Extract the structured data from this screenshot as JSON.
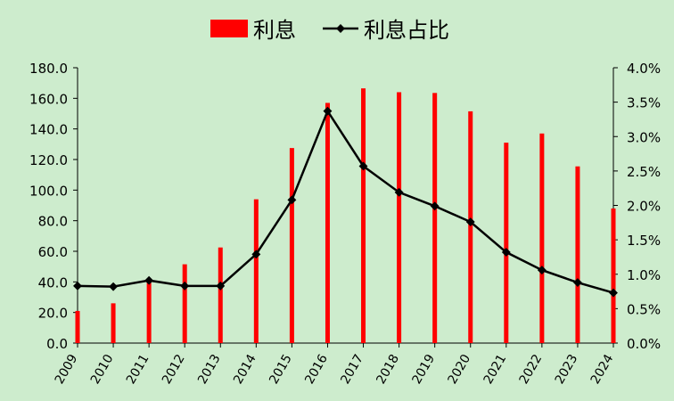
{
  "colors": {
    "background": "#cdeccd",
    "bar": "#ff0000",
    "line": "#000000"
  },
  "chart_data": {
    "type": "bar+line",
    "categories": [
      "2009",
      "2010",
      "2011",
      "2012",
      "2013",
      "2014",
      "2015",
      "2016",
      "2017",
      "2018",
      "2019",
      "2020",
      "2021",
      "2022",
      "2023",
      "2024"
    ],
    "series": [
      {
        "name": "利息",
        "type": "bar",
        "axis": "left",
        "values": [
          21,
          26,
          40,
          51.5,
          62.5,
          94,
          127.5,
          157,
          166.5,
          164,
          163.5,
          151.5,
          131,
          137,
          115.5,
          88
        ]
      },
      {
        "name": "利息占比",
        "type": "line",
        "axis": "right",
        "values": [
          0.83,
          0.82,
          0.91,
          0.83,
          0.83,
          1.29,
          2.08,
          3.37,
          2.57,
          2.19,
          1.99,
          1.76,
          1.32,
          1.06,
          0.88,
          0.73
        ]
      }
    ],
    "yleft": {
      "ylim": [
        0,
        180
      ],
      "ticks": [
        "0.0",
        "20.0",
        "40.0",
        "60.0",
        "80.0",
        "100.0",
        "120.0",
        "140.0",
        "160.0",
        "180.0"
      ]
    },
    "yright": {
      "ylim": [
        0,
        4
      ],
      "ticks": [
        "0.0%",
        "0.5%",
        "1.0%",
        "1.5%",
        "2.0%",
        "2.5%",
        "3.0%",
        "3.5%",
        "4.0%"
      ]
    },
    "legend_position": "top",
    "grid": false
  }
}
